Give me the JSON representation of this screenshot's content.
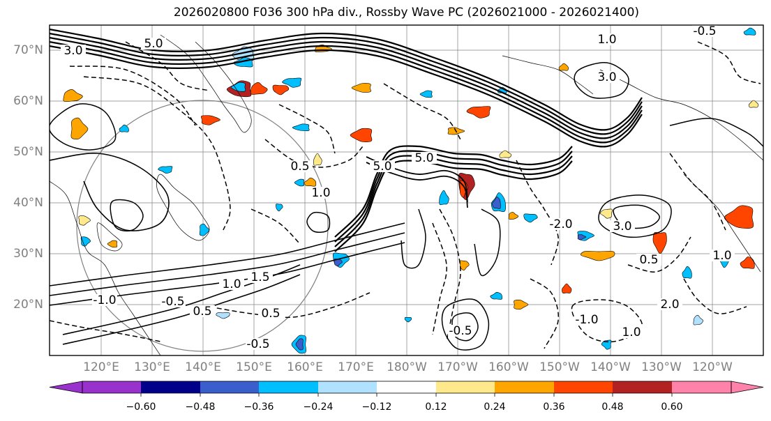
{
  "title": "2026020800 F036 300 hPa div., Rossby Wave PC (2026021000 - 2026021400)",
  "map": {
    "lat_labels": [
      "70°N",
      "60°N",
      "50°N",
      "40°N",
      "30°N",
      "20°N"
    ],
    "lon_labels": [
      "120°E",
      "130°E",
      "140°E",
      "150°E",
      "160°E",
      "170°E",
      "180°W",
      "170°W",
      "160°W",
      "150°W",
      "140°W",
      "130°W",
      "120°W"
    ],
    "contour_labels": [
      "3.0",
      "5.0",
      "1.0",
      "0.5",
      "1.0",
      "0.5",
      "5.0",
      "1.5",
      "1.0",
      "0.5",
      "1.0",
      "-0.5",
      "-1.0",
      "-2.0",
      "-0.5",
      "-1.0",
      "5.0",
      "3.0",
      "1.0",
      "-0.5",
      "0.5",
      "-0.5",
      "2.0",
      "3.0"
    ],
    "grid_color": "#808080",
    "coast_color": "#000000"
  },
  "colorbar": {
    "colors": [
      "#9932cc",
      "#00008b",
      "#3a5fcd",
      "#00bfff",
      "#b0e2ff",
      "#ffffff",
      "#ffe98a",
      "#ffa500",
      "#ff4500",
      "#b22222",
      "#ff82ab"
    ],
    "tick_labels": [
      "−0.60",
      "−0.48",
      "−0.36",
      "−0.24",
      "−0.12",
      "0.12",
      "0.24",
      "0.36",
      "0.48",
      "0.60"
    ]
  }
}
